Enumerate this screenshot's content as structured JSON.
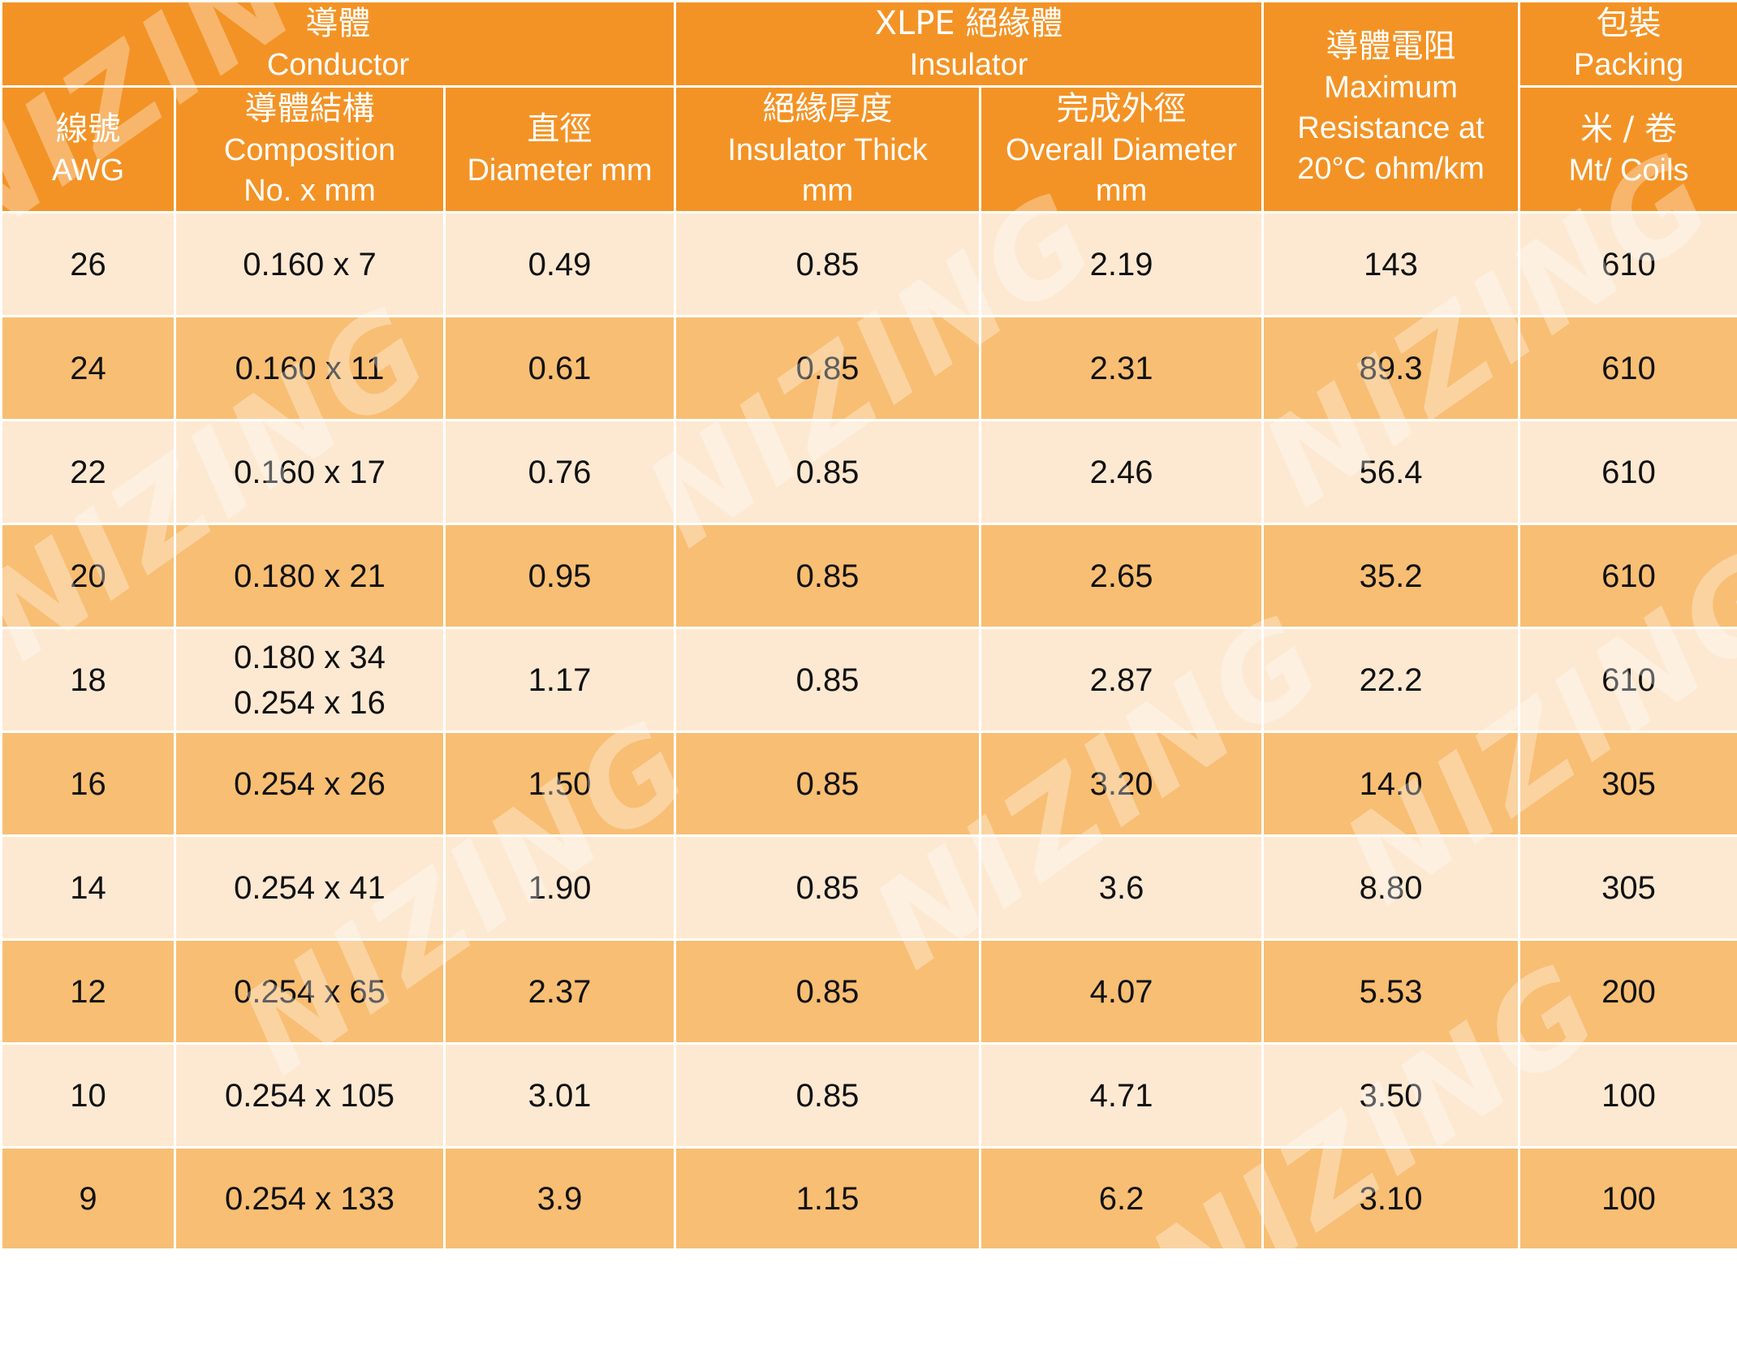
{
  "header": {
    "conductor": {
      "zh": "導體",
      "en": "Conductor"
    },
    "insulator": {
      "zh": "XLPE 絕緣體",
      "en": "Insulator"
    },
    "resistance": {
      "zh": "導體電阻",
      "en1": "Maximum",
      "en2": "Resistance at",
      "en3": "20°C ohm/km"
    },
    "packing": {
      "zh": "包裝",
      "en": "Packing"
    },
    "awg": {
      "zh": "線號",
      "en": "AWG"
    },
    "composition": {
      "zh": "導體結構",
      "en1": "Composition",
      "en2": "No. x mm"
    },
    "diameter": {
      "zh": "直徑",
      "en": "Diameter mm"
    },
    "thickness": {
      "zh": "絕緣厚度",
      "en1": "Insulator Thick",
      "en2": "mm"
    },
    "overall": {
      "zh": "完成外徑",
      "en1": "Overall Diameter",
      "en2": "mm"
    },
    "coils": {
      "zh": "米 / 卷",
      "en": "Mt/ Coils"
    }
  },
  "rows": [
    {
      "awg": "26",
      "comp": [
        "0.160 x 7"
      ],
      "dia": "0.49",
      "thick": "0.85",
      "overall": "2.19",
      "res": "143",
      "pack": "610"
    },
    {
      "awg": "24",
      "comp": [
        "0.160 x 11"
      ],
      "dia": "0.61",
      "thick": "0.85",
      "overall": "2.31",
      "res": "89.3",
      "pack": "610"
    },
    {
      "awg": "22",
      "comp": [
        "0.160 x 17"
      ],
      "dia": "0.76",
      "thick": "0.85",
      "overall": "2.46",
      "res": "56.4",
      "pack": "610"
    },
    {
      "awg": "20",
      "comp": [
        "0.180 x 21"
      ],
      "dia": "0.95",
      "thick": "0.85",
      "overall": "2.65",
      "res": "35.2",
      "pack": "610"
    },
    {
      "awg": "18",
      "comp": [
        "0.180 x 34",
        "0.254 x 16"
      ],
      "dia": "1.17",
      "thick": "0.85",
      "overall": "2.87",
      "res": "22.2",
      "pack": "610"
    },
    {
      "awg": "16",
      "comp": [
        "0.254 x 26"
      ],
      "dia": "1.50",
      "thick": "0.85",
      "overall": "3.20",
      "res": "14.0",
      "pack": "305"
    },
    {
      "awg": "14",
      "comp": [
        "0.254 x 41"
      ],
      "dia": "1.90",
      "thick": "0.85",
      "overall": "3.6",
      "res": "8.80",
      "pack": "305"
    },
    {
      "awg": "12",
      "comp": [
        "0.254 x 65"
      ],
      "dia": "2.37",
      "thick": "0.85",
      "overall": "4.07",
      "res": "5.53",
      "pack": "200"
    },
    {
      "awg": "10",
      "comp": [
        "0.254 x 105"
      ],
      "dia": "3.01",
      "thick": "0.85",
      "overall": "4.71",
      "res": "3.50",
      "pack": "100"
    },
    {
      "awg": "9",
      "comp": [
        "0.254 x 133"
      ],
      "dia": "3.9",
      "thick": "1.15",
      "overall": "6.2",
      "res": "3.10",
      "pack": "100"
    }
  ],
  "watermark": "NIZING",
  "colors": {
    "header_bg": "#f39325",
    "row_light": "#fde9d2",
    "row_dark": "#f8be73",
    "header_text": "#ffffff",
    "cell_text": "#111111"
  }
}
